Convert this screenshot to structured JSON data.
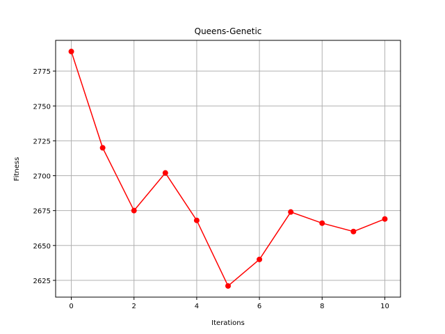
{
  "chart_data": {
    "type": "line",
    "title": "Queens-Genetic",
    "xlabel": "Iterations",
    "ylabel": "Fitness",
    "x": [
      0,
      1,
      2,
      3,
      4,
      5,
      6,
      7,
      8,
      9,
      10
    ],
    "series": [
      {
        "values": [
          2789,
          2720,
          2675,
          2702,
          2668,
          2621,
          2640,
          2674,
          2666,
          2660,
          2669
        ],
        "color": "#ff0000",
        "marker": "circle"
      }
    ],
    "xlim": [
      -0.5,
      10.5
    ],
    "ylim": [
      2613,
      2797
    ],
    "xticks": [
      0,
      2,
      4,
      6,
      8,
      10
    ],
    "yticks": [
      2625,
      2650,
      2675,
      2700,
      2725,
      2750,
      2775
    ],
    "grid": true,
    "grid_color": "#b0b0b0"
  }
}
